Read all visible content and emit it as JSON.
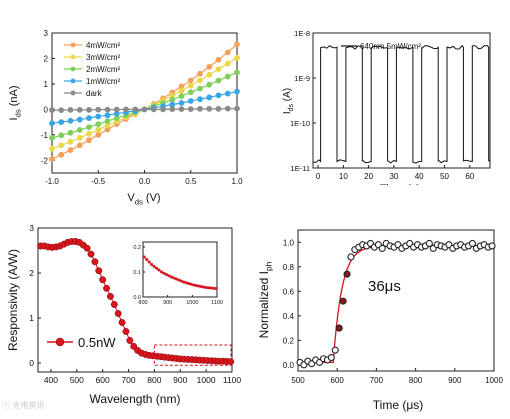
{
  "chart_data": [
    {
      "id": "a",
      "type": "line",
      "xlabel_main": "V",
      "xlabel_sub": "ds",
      "xlabel_unit": " (V)",
      "ylabel_main": "I",
      "ylabel_sub": "ds",
      "ylabel_unit": " (nA)",
      "xlim": [
        -1.0,
        1.0
      ],
      "ylim": [
        -2.5,
        3.0
      ],
      "xticks": [
        -1.0,
        -0.5,
        0.0,
        0.5,
        1.0
      ],
      "xtick_labels": [
        "-1.0",
        "-0.5",
        "0.0",
        "0.5",
        "1.0"
      ],
      "yticks": [
        -2,
        -1,
        0,
        1,
        2,
        3
      ],
      "ytick_labels": [
        "-2",
        "-1",
        "0",
        "1",
        "2",
        "3"
      ],
      "legend_position": "top-left",
      "grid": false,
      "series": [
        {
          "name": "4mW/cm²",
          "color": "#f4a05a",
          "x": [
            -1.0,
            -0.9,
            -0.8,
            -0.7,
            -0.6,
            -0.5,
            -0.4,
            -0.3,
            -0.2,
            -0.1,
            0.0,
            0.1,
            0.2,
            0.3,
            0.4,
            0.5,
            0.6,
            0.7,
            0.8,
            0.9,
            1.0
          ],
          "y": [
            -1.95,
            -1.78,
            -1.6,
            -1.41,
            -1.21,
            -1.0,
            -0.79,
            -0.58,
            -0.38,
            -0.18,
            0.0,
            0.21,
            0.43,
            0.66,
            0.9,
            1.14,
            1.4,
            1.67,
            1.95,
            2.24,
            2.55
          ]
        },
        {
          "name": "3mW/cm²",
          "color": "#e8d84a",
          "x": [
            -1.0,
            -0.9,
            -0.8,
            -0.7,
            -0.6,
            -0.5,
            -0.4,
            -0.3,
            -0.2,
            -0.1,
            0.0,
            0.1,
            0.2,
            0.3,
            0.4,
            0.5,
            0.6,
            0.7,
            0.8,
            0.9,
            1.0
          ],
          "y": [
            -1.55,
            -1.41,
            -1.27,
            -1.12,
            -0.96,
            -0.8,
            -0.63,
            -0.47,
            -0.31,
            -0.15,
            0.0,
            0.17,
            0.35,
            0.54,
            0.73,
            0.93,
            1.14,
            1.36,
            1.58,
            1.8,
            2.02
          ]
        },
        {
          "name": "2mW/cm²",
          "color": "#7fcf5a",
          "x": [
            -1.0,
            -0.9,
            -0.8,
            -0.7,
            -0.6,
            -0.5,
            -0.4,
            -0.3,
            -0.2,
            -0.1,
            0.0,
            0.1,
            0.2,
            0.3,
            0.4,
            0.5,
            0.6,
            0.7,
            0.8,
            0.9,
            1.0
          ],
          "y": [
            -1.12,
            -1.02,
            -0.92,
            -0.81,
            -0.7,
            -0.58,
            -0.46,
            -0.34,
            -0.23,
            -0.11,
            0.0,
            0.12,
            0.25,
            0.38,
            0.52,
            0.67,
            0.82,
            0.97,
            1.13,
            1.29,
            1.45
          ]
        },
        {
          "name": "1mW/cm²",
          "color": "#3aa6e8",
          "x": [
            -1.0,
            -0.9,
            -0.8,
            -0.7,
            -0.6,
            -0.5,
            -0.4,
            -0.3,
            -0.2,
            -0.1,
            0.0,
            0.1,
            0.2,
            0.3,
            0.4,
            0.5,
            0.6,
            0.7,
            0.8,
            0.9,
            1.0
          ],
          "y": [
            -0.55,
            -0.5,
            -0.45,
            -0.4,
            -0.34,
            -0.28,
            -0.23,
            -0.17,
            -0.11,
            -0.06,
            0.0,
            0.06,
            0.12,
            0.19,
            0.25,
            0.33,
            0.4,
            0.47,
            0.55,
            0.62,
            0.7
          ]
        },
        {
          "name": "dark",
          "color": "#8a8a8a",
          "x": [
            -1.0,
            -0.9,
            -0.8,
            -0.7,
            -0.6,
            -0.5,
            -0.4,
            -0.3,
            -0.2,
            -0.1,
            0.0,
            0.1,
            0.2,
            0.3,
            0.4,
            0.5,
            0.6,
            0.7,
            0.8,
            0.9,
            1.0
          ],
          "y": [
            -0.03,
            -0.03,
            -0.02,
            -0.02,
            -0.02,
            -0.01,
            -0.01,
            -0.01,
            0.0,
            0.0,
            0.0,
            0.0,
            0.0,
            0.01,
            0.01,
            0.01,
            0.02,
            0.02,
            0.02,
            0.03,
            0.03
          ]
        }
      ]
    },
    {
      "id": "b",
      "type": "line",
      "legend": "640nm 5mW/cm²",
      "ylabel_main": "I",
      "ylabel_sub": "ds",
      "ylabel_unit": " (A)",
      "xlabel_visible_part": "Time (s)",
      "xlim": [
        -2,
        68
      ],
      "yscale": "log",
      "ylim_exp": [
        -11,
        -8
      ],
      "xticks": [
        0,
        10,
        20,
        30,
        40,
        50,
        60
      ],
      "xtick_labels": [
        "0",
        "10",
        "20",
        "30",
        "40",
        "50",
        "60"
      ],
      "yticks_exp": [
        -11,
        -10,
        -9,
        -8
      ],
      "ytick_labels": [
        "1E-11",
        "1E-10",
        "1E-9",
        "1E-8"
      ],
      "on_level": 4.8e-09,
      "off_level": 1.4e-11,
      "switching_times": [
        1,
        7.5,
        11,
        17.5,
        21,
        27.5,
        31,
        37.5,
        41,
        47.5,
        51,
        57.5,
        61,
        67.5
      ],
      "initial_state": "off"
    },
    {
      "id": "c",
      "type": "scatter",
      "legend": "0.5nW",
      "xlabel": "Wavelength (nm)",
      "ylabel": "Responsivity (A/W)",
      "xlim": [
        350,
        1100
      ],
      "ylim": [
        -0.2,
        3.0
      ],
      "xticks": [
        400,
        500,
        600,
        700,
        800,
        900,
        1000,
        1100
      ],
      "xtick_labels": [
        "400",
        "500",
        "600",
        "700",
        "800",
        "900",
        "1000",
        "1100"
      ],
      "yticks": [
        0,
        1,
        2,
        3
      ],
      "ytick_labels": [
        "0",
        "1",
        "2",
        "3"
      ],
      "color": "#d8141c",
      "x": [
        360,
        375,
        390,
        405,
        420,
        435,
        450,
        465,
        480,
        495,
        510,
        525,
        540,
        555,
        570,
        585,
        600,
        615,
        630,
        645,
        660,
        675,
        690,
        705,
        720,
        735,
        750,
        765,
        780,
        795,
        810,
        825,
        840,
        855,
        870,
        885,
        900,
        915,
        930,
        945,
        960,
        975,
        990,
        1005,
        1020,
        1035,
        1050,
        1065,
        1080,
        1095
      ],
      "y": [
        2.6,
        2.6,
        2.58,
        2.57,
        2.58,
        2.6,
        2.64,
        2.68,
        2.7,
        2.7,
        2.68,
        2.62,
        2.55,
        2.42,
        2.25,
        2.05,
        1.85,
        1.66,
        1.48,
        1.3,
        1.1,
        0.9,
        0.7,
        0.5,
        0.37,
        0.28,
        0.22,
        0.19,
        0.17,
        0.16,
        0.15,
        0.14,
        0.13,
        0.12,
        0.11,
        0.1,
        0.09,
        0.085,
        0.08,
        0.075,
        0.07,
        0.065,
        0.06,
        0.055,
        0.05,
        0.045,
        0.04,
        0.04,
        0.035,
        0.03
      ],
      "highlight_box": {
        "x": [
          800,
          1100
        ],
        "y": [
          -0.05,
          0.4
        ],
        "color": "#d8141c"
      },
      "inset": {
        "xlim": [
          800,
          1100
        ],
        "ylim": [
          0,
          0.22
        ],
        "xticks": [
          800,
          900,
          1000,
          1100
        ],
        "xtick_labels": [
          "800",
          "900",
          "1000",
          "1100"
        ],
        "yticks": [
          0.0,
          0.1,
          0.2
        ],
        "ytick_labels": [
          "0.0",
          "0.1",
          "0.2"
        ],
        "x": [
          805,
          815,
          825,
          835,
          845,
          855,
          865,
          875,
          885,
          895,
          905,
          915,
          925,
          935,
          945,
          955,
          965,
          975,
          985,
          995,
          1005,
          1015,
          1025,
          1035,
          1045,
          1055,
          1065,
          1075,
          1085,
          1095
        ],
        "y": [
          0.16,
          0.15,
          0.14,
          0.13,
          0.122,
          0.115,
          0.108,
          0.1,
          0.095,
          0.09,
          0.085,
          0.08,
          0.076,
          0.072,
          0.068,
          0.064,
          0.06,
          0.057,
          0.054,
          0.051,
          0.048,
          0.046,
          0.044,
          0.042,
          0.04,
          0.038,
          0.037,
          0.036,
          0.035,
          0.034
        ]
      }
    },
    {
      "id": "d",
      "type": "scatter",
      "annotation": "36μs",
      "xlabel": "Time (μs)",
      "ylabel_main": "Normalized I",
      "ylabel_sub": "ph",
      "xlim": [
        500,
        1000
      ],
      "ylim": [
        -0.05,
        1.1
      ],
      "xticks": [
        500,
        600,
        700,
        800,
        900,
        1000
      ],
      "xtick_labels": [
        "500",
        "600",
        "700",
        "800",
        "900",
        "1000"
      ],
      "yticks": [
        0.0,
        0.2,
        0.4,
        0.6,
        0.8,
        1.0
      ],
      "ytick_labels": [
        "0.0",
        "0.2",
        "0.4",
        "0.6",
        "0.8",
        "1.0"
      ],
      "marker_color": "#222222",
      "fit_color": "#d8141c",
      "x": [
        505,
        515,
        525,
        535,
        545,
        555,
        565,
        575,
        585,
        595,
        605,
        615,
        625,
        635,
        645,
        655,
        665,
        675,
        685,
        695,
        705,
        715,
        725,
        735,
        745,
        755,
        765,
        775,
        785,
        795,
        805,
        815,
        825,
        835,
        845,
        855,
        865,
        875,
        885,
        895,
        905,
        915,
        925,
        935,
        945,
        955,
        965,
        975,
        985,
        995
      ],
      "y": [
        0.02,
        0.0,
        0.03,
        0.01,
        0.04,
        0.02,
        0.05,
        0.04,
        0.06,
        0.12,
        0.3,
        0.52,
        0.74,
        0.88,
        0.94,
        0.96,
        0.98,
        0.97,
        0.99,
        0.96,
        0.98,
        0.95,
        0.99,
        0.97,
        0.96,
        0.98,
        0.95,
        0.97,
        0.99,
        0.96,
        0.98,
        0.96,
        0.97,
        0.99,
        0.95,
        0.98,
        0.97,
        0.96,
        0.98,
        0.95,
        0.97,
        0.98,
        0.96,
        0.97,
        0.99,
        0.95,
        0.97,
        0.98,
        0.96,
        0.97
      ]
    }
  ],
  "watermark": "ⓒ 光电资讯"
}
